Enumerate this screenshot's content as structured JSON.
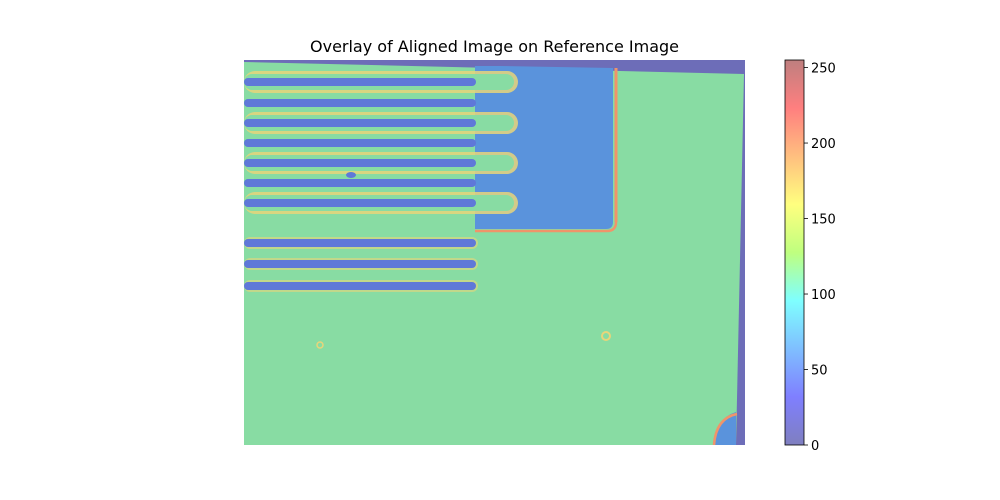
{
  "chart_data": {
    "type": "heatmap",
    "title": "Overlay of Aligned Image on Reference Image",
    "xlabel": "",
    "ylabel": "",
    "axes": "off",
    "colormap": "jet",
    "overlay_alpha": 0.5,
    "colorbar": {
      "range": [
        0,
        255
      ],
      "ticks": [
        0,
        50,
        100,
        150,
        200,
        250
      ],
      "tick_labels": [
        "0",
        "50",
        "100",
        "150",
        "200",
        "250"
      ],
      "placement": "right"
    },
    "image_description_values": {
      "background_level": 135,
      "finger_gap_level": 40,
      "edge_highlight_level": 225
    }
  },
  "colors": {
    "jet_stops": [
      "#7f7fbf",
      "#7f7fff",
      "#7fbfff",
      "#7fffff",
      "#bfff7f",
      "#ffff7f",
      "#ffbf7f",
      "#ff7f7f",
      "#bf7f7f"
    ],
    "surface": "#88dca3",
    "gap": "#5f78d8",
    "pad": "#5a93dc",
    "edge": "#f0946a",
    "rim": "#e8d57a",
    "frame": "#6d6db8"
  }
}
